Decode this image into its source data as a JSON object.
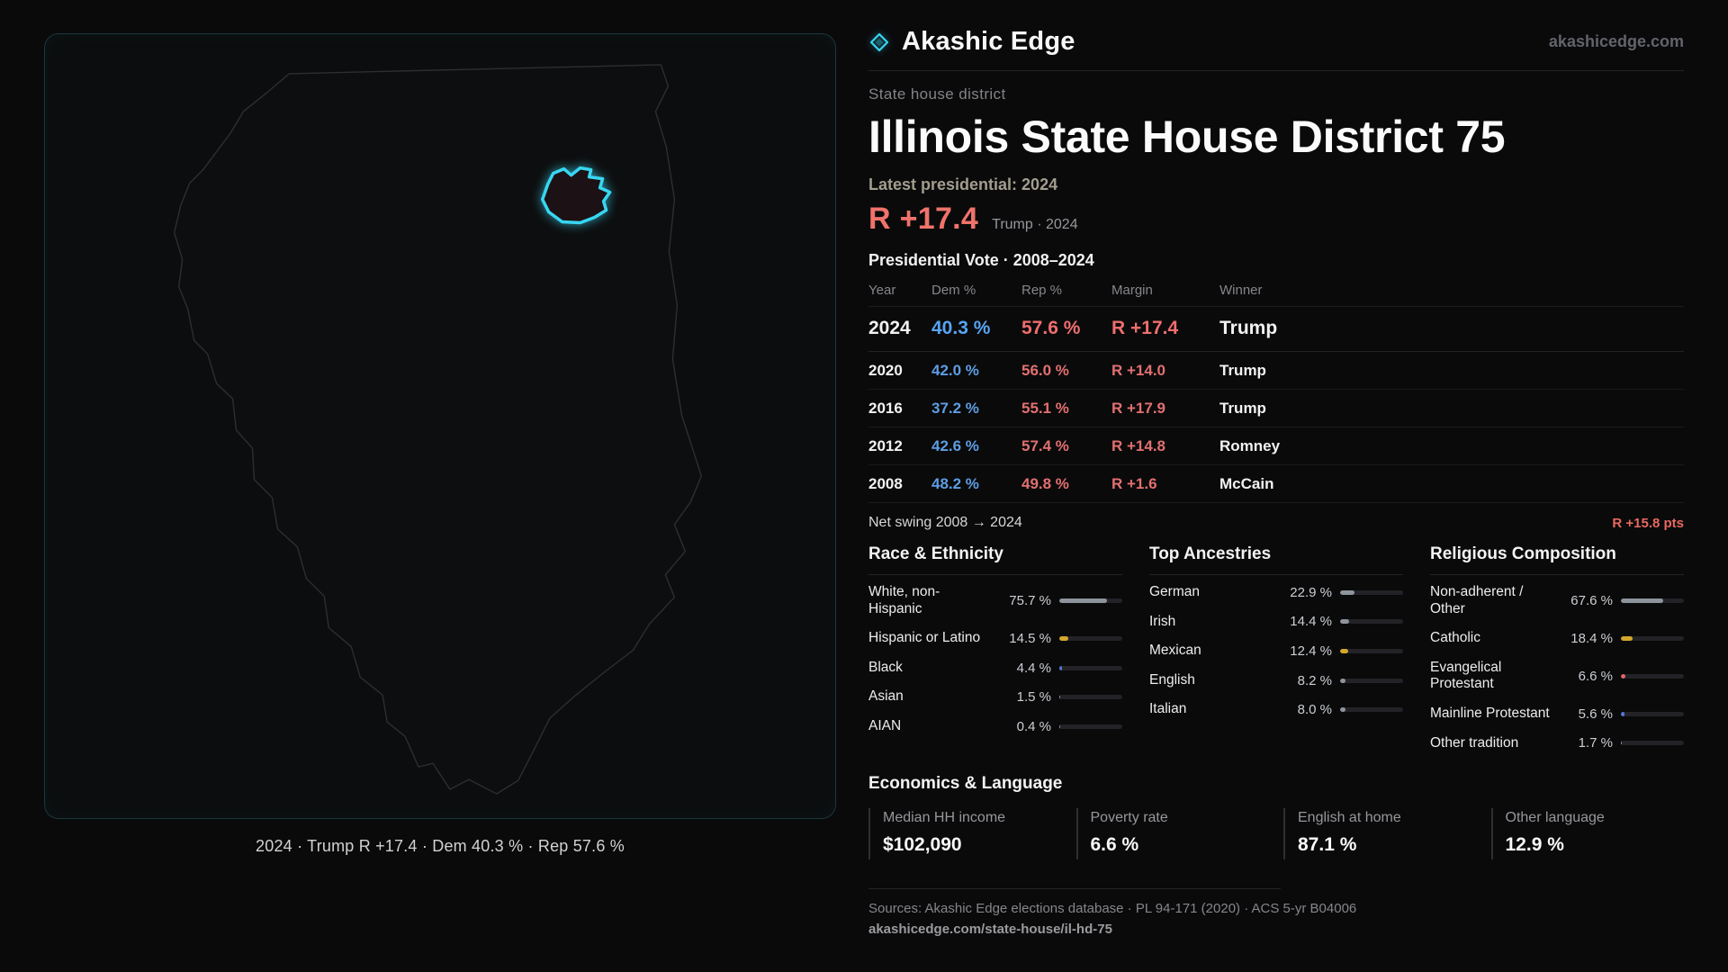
{
  "brand": {
    "name": "Akashic Edge",
    "domain": "akashicedge.com",
    "accent": "#38d6f2"
  },
  "map": {
    "caption": "2024 · Trump R +17.4 · Dem 40.3 % · Rep 57.6 %"
  },
  "district": {
    "kicker": "State house district",
    "title": "Illinois State House District 75",
    "latest_label": "Latest presidential: 2024",
    "headline_margin": "R +17.4",
    "headline_context": "Trump · 2024"
  },
  "vote_table": {
    "title": "Presidential Vote · 2008–2024",
    "headers": {
      "year": "Year",
      "dem": "Dem %",
      "rep": "Rep %",
      "margin": "Margin",
      "winner": "Winner"
    },
    "rows": [
      {
        "year": "2024",
        "dem": "40.3 %",
        "rep": "57.6 %",
        "margin": "R +17.4",
        "winner": "Trump"
      },
      {
        "year": "2020",
        "dem": "42.0 %",
        "rep": "56.0 %",
        "margin": "R +14.0",
        "winner": "Trump"
      },
      {
        "year": "2016",
        "dem": "37.2 %",
        "rep": "55.1 %",
        "margin": "R +17.9",
        "winner": "Trump"
      },
      {
        "year": "2012",
        "dem": "42.6 %",
        "rep": "57.4 %",
        "margin": "R +14.8",
        "winner": "Romney"
      },
      {
        "year": "2008",
        "dem": "48.2 %",
        "rep": "49.8 %",
        "margin": "R +1.6",
        "winner": "McCain"
      }
    ]
  },
  "swing": {
    "label": "Net swing 2008 → 2024",
    "value": "R +15.8 pts"
  },
  "demographics": {
    "race": {
      "title": "Race & Ethnicity",
      "items": [
        {
          "label": "White, non-Hispanic",
          "value": "75.7 %",
          "pct": 75.7,
          "color": "#8e949c"
        },
        {
          "label": "Hispanic or Latino",
          "value": "14.5 %",
          "pct": 14.5,
          "color": "#d4a72c"
        },
        {
          "label": "Black",
          "value": "4.4 %",
          "pct": 4.4,
          "color": "#5578d6"
        },
        {
          "label": "Asian",
          "value": "1.5 %",
          "pct": 1.5,
          "color": "#8e949c"
        },
        {
          "label": "AIAN",
          "value": "0.4 %",
          "pct": 0.4,
          "color": "#8e949c"
        }
      ]
    },
    "ancestries": {
      "title": "Top Ancestries",
      "items": [
        {
          "label": "German",
          "value": "22.9 %",
          "pct": 22.9,
          "color": "#8e949c"
        },
        {
          "label": "Irish",
          "value": "14.4 %",
          "pct": 14.4,
          "color": "#8e949c"
        },
        {
          "label": "Mexican",
          "value": "12.4 %",
          "pct": 12.4,
          "color": "#d4a72c"
        },
        {
          "label": "English",
          "value": "8.2 %",
          "pct": 8.2,
          "color": "#8e949c"
        },
        {
          "label": "Italian",
          "value": "8.0 %",
          "pct": 8.0,
          "color": "#8e949c"
        }
      ]
    },
    "religion": {
      "title": "Religious Composition",
      "items": [
        {
          "label": "Non-adherent / Other",
          "value": "67.6 %",
          "pct": 67.6,
          "color": "#8e949c"
        },
        {
          "label": "Catholic",
          "value": "18.4 %",
          "pct": 18.4,
          "color": "#d4a72c"
        },
        {
          "label": "Evangelical Protestant",
          "value": "6.6 %",
          "pct": 6.6,
          "color": "#e06565"
        },
        {
          "label": "Mainline Protestant",
          "value": "5.6 %",
          "pct": 5.6,
          "color": "#5578d6"
        },
        {
          "label": "Other tradition",
          "value": "1.7 %",
          "pct": 1.7,
          "color": "#8e949c"
        }
      ]
    }
  },
  "economics": {
    "title": "Economics & Language",
    "stats": [
      {
        "label": "Median HH income",
        "value": "$102,090"
      },
      {
        "label": "Poverty rate",
        "value": "6.6 %"
      },
      {
        "label": "English at home",
        "value": "87.1 %"
      },
      {
        "label": "Other language",
        "value": "12.9 %"
      }
    ]
  },
  "footer": {
    "sources": "Sources: Akashic Edge elections database · PL 94-171 (2020) · ACS 5-yr B04006",
    "url": "akashicedge.com/state-house/il-hd-75"
  },
  "chart_data": [
    {
      "type": "table",
      "title": "Presidential Vote · 2008–2024",
      "columns": [
        "Year",
        "Dem %",
        "Rep %",
        "Margin",
        "Winner"
      ],
      "rows": [
        [
          "2024",
          40.3,
          57.6,
          "R +17.4",
          "Trump"
        ],
        [
          "2020",
          42.0,
          56.0,
          "R +14.0",
          "Trump"
        ],
        [
          "2016",
          37.2,
          55.1,
          "R +17.9",
          "Trump"
        ],
        [
          "2012",
          42.6,
          57.4,
          "R +14.8",
          "Romney"
        ],
        [
          "2008",
          48.2,
          49.8,
          "R +1.6",
          "McCain"
        ]
      ],
      "annotations": [
        "Latest presidential 2024: R +17.4 (Trump)",
        "Net swing 2008 → 2024: R +15.8 pts"
      ]
    },
    {
      "type": "bar",
      "title": "Race & Ethnicity",
      "categories": [
        "White, non-Hispanic",
        "Hispanic or Latino",
        "Black",
        "Asian",
        "AIAN"
      ],
      "values": [
        75.7,
        14.5,
        4.4,
        1.5,
        0.4
      ],
      "xlabel": "",
      "ylabel": "",
      "xlim": [
        0,
        100
      ],
      "unit": "%",
      "orientation": "horizontal"
    },
    {
      "type": "bar",
      "title": "Top Ancestries",
      "categories": [
        "German",
        "Irish",
        "Mexican",
        "English",
        "Italian"
      ],
      "values": [
        22.9,
        14.4,
        12.4,
        8.2,
        8.0
      ],
      "xlabel": "",
      "ylabel": "",
      "xlim": [
        0,
        100
      ],
      "unit": "%",
      "orientation": "horizontal"
    },
    {
      "type": "bar",
      "title": "Religious Composition",
      "categories": [
        "Non-adherent / Other",
        "Catholic",
        "Evangelical Protestant",
        "Mainline Protestant",
        "Other tradition"
      ],
      "values": [
        67.6,
        18.4,
        6.6,
        5.6,
        1.7
      ],
      "xlabel": "",
      "ylabel": "",
      "xlim": [
        0,
        100
      ],
      "unit": "%",
      "orientation": "horizontal"
    }
  ]
}
